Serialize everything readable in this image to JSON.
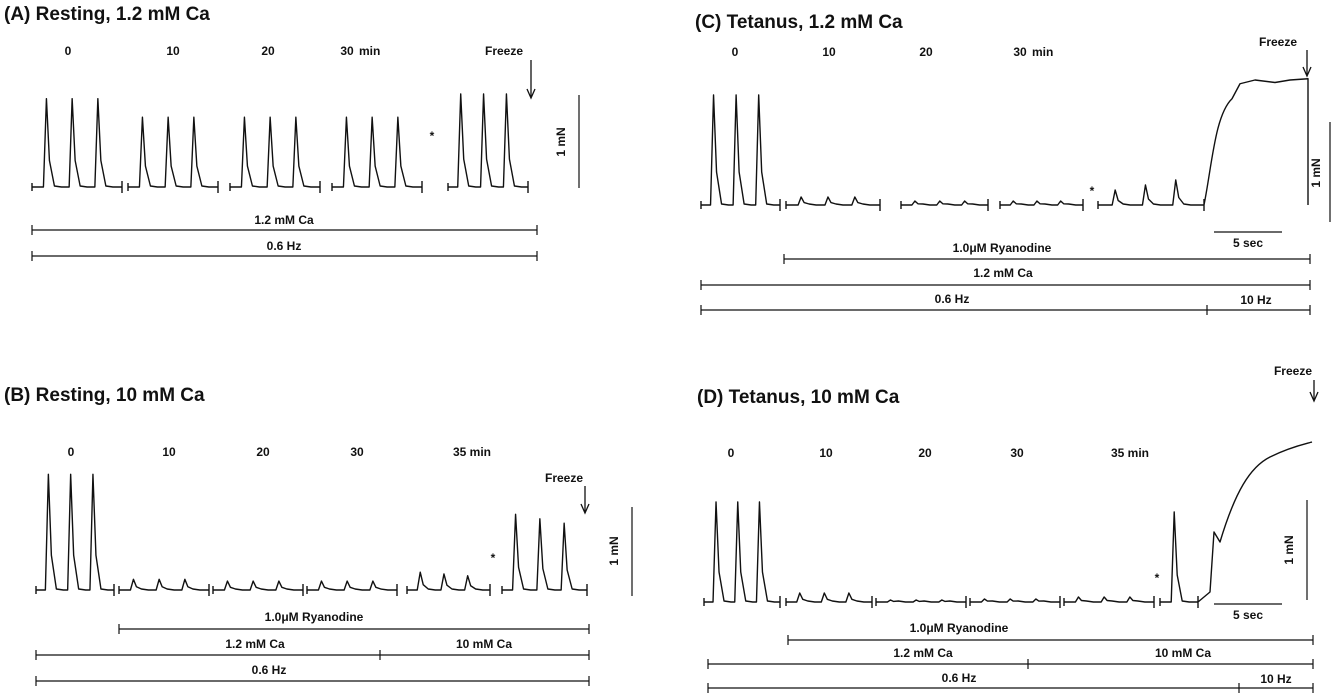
{
  "chart_data": [
    {
      "type": "line",
      "panel": "A",
      "title": "(A) Resting, 1.2 mM Ca",
      "time_labels": [
        "0",
        "10",
        "20",
        "30",
        "min"
      ],
      "freeze_label": "Freeze",
      "asterisk": "*",
      "scale_force": "1 mN",
      "groups": [
        {
          "time": "0",
          "peaks": [
            0.95,
            0.95,
            0.95
          ]
        },
        {
          "time": "10",
          "peaks": [
            0.75,
            0.75,
            0.75
          ]
        },
        {
          "time": "20",
          "peaks": [
            0.75,
            0.75,
            0.75
          ]
        },
        {
          "time": "30",
          "peaks": [
            0.75,
            0.75,
            0.75
          ]
        },
        {
          "time": "freeze",
          "peaks": [
            1.0,
            1.0,
            1.0
          ]
        }
      ],
      "condition_bars": [
        {
          "label": "1.2 mM Ca"
        },
        {
          "label": "0.6 Hz"
        }
      ]
    },
    {
      "type": "line",
      "panel": "B",
      "title": "(B) Resting, 10 mM Ca",
      "time_labels": [
        "0",
        "10",
        "20",
        "30",
        "35 min"
      ],
      "freeze_label": "Freeze",
      "asterisk": "*",
      "scale_force": "1 mN",
      "groups": [
        {
          "time": "0",
          "peaks": [
            1.3,
            1.3,
            1.3
          ]
        },
        {
          "time": "10",
          "peaks": [
            0.12,
            0.12,
            0.12
          ]
        },
        {
          "time": "20",
          "peaks": [
            0.1,
            0.1,
            0.1
          ]
        },
        {
          "time": "30",
          "peaks": [
            0.1,
            0.1,
            0.1
          ]
        },
        {
          "time": "35",
          "peaks": [
            0.2,
            0.18,
            0.16
          ]
        },
        {
          "time": "freeze",
          "peaks": [
            0.85,
            0.8,
            0.75
          ]
        }
      ],
      "condition_bars": [
        {
          "label": "1.0μM Ryanodine"
        },
        {
          "label": "1.2 mM Ca"
        },
        {
          "label": "10 mM Ca"
        },
        {
          "label": "0.6 Hz"
        }
      ]
    },
    {
      "type": "line",
      "panel": "C",
      "title": "(C) Tetanus, 1.2 mM Ca",
      "time_labels": [
        "0",
        "10",
        "20",
        "30",
        "min"
      ],
      "freeze_label": "Freeze",
      "asterisk": "*",
      "scale_force": "1 mN",
      "scale_time": "5 sec",
      "groups": [
        {
          "time": "0",
          "peaks": [
            1.1,
            1.1,
            1.1
          ]
        },
        {
          "time": "10",
          "peaks": [
            0.08,
            0.08,
            0.08
          ]
        },
        {
          "time": "20",
          "peaks": [
            0.04,
            0.04,
            0.04
          ]
        },
        {
          "time": "30",
          "peaks": [
            0.04,
            0.04,
            0.04
          ]
        },
        {
          "time": "post",
          "peaks": [
            0.15,
            0.2,
            0.25
          ]
        }
      ],
      "tetanus_peak": 1.25,
      "condition_bars": [
        {
          "label": "1.0μM Ryanodine"
        },
        {
          "label": "1.2 mM Ca"
        },
        {
          "label": "0.6 Hz"
        },
        {
          "label": "10 Hz"
        }
      ]
    },
    {
      "type": "line",
      "panel": "D",
      "title": "(D) Tetanus, 10 mM Ca",
      "time_labels": [
        "0",
        "10",
        "20",
        "30",
        "35 min"
      ],
      "freeze_label": "Freeze",
      "asterisk": "*",
      "scale_force": "1 mN",
      "scale_time": "5 sec",
      "groups": [
        {
          "time": "0",
          "peaks": [
            1.0,
            1.0,
            1.0
          ]
        },
        {
          "time": "10",
          "peaks": [
            0.09,
            0.09,
            0.09
          ]
        },
        {
          "time": "20",
          "peaks": [
            0.02,
            0.02,
            0.02
          ]
        },
        {
          "time": "30",
          "peaks": [
            0.03,
            0.03,
            0.03
          ]
        },
        {
          "time": "35",
          "peaks": [
            0.05,
            0.05,
            0.05
          ]
        },
        {
          "time": "post",
          "peaks": [
            0.9
          ]
        }
      ],
      "tetanus_peak": 1.6,
      "condition_bars": [
        {
          "label": "1.0μM Ryanodine"
        },
        {
          "label": "1.2 mM Ca"
        },
        {
          "label": "10 mM Ca"
        },
        {
          "label": "0.6 Hz"
        },
        {
          "label": "10 Hz"
        }
      ]
    }
  ]
}
